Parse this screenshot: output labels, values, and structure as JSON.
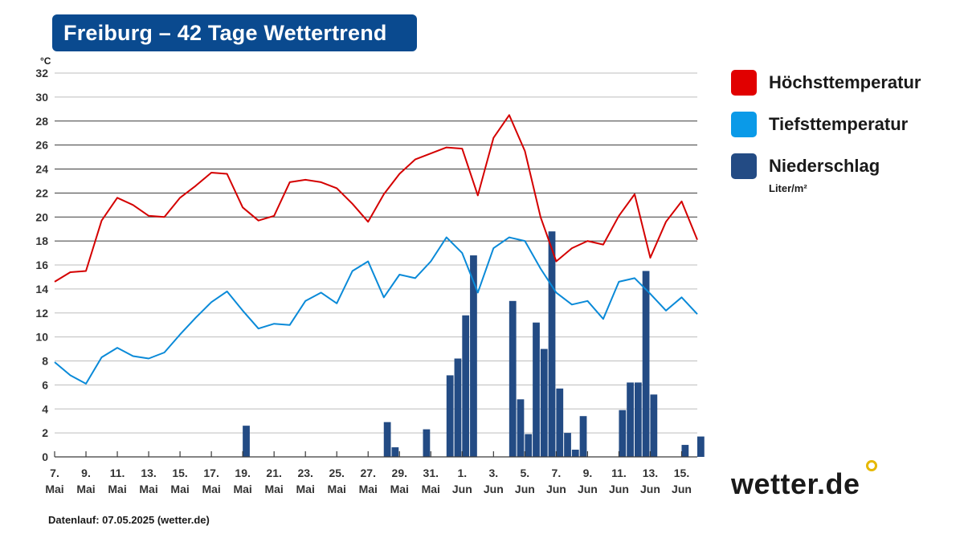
{
  "header": {
    "title": "Freiburg – 42 Tage Wettertrend"
  },
  "legend": {
    "items": [
      {
        "label": "Höchsttemperatur",
        "color": "#e10000",
        "unit": ""
      },
      {
        "label": "Tiefsttemperatur",
        "color": "#0a9ae8",
        "unit": ""
      },
      {
        "label": "Niederschlag",
        "color": "#234b84",
        "unit": "Liter/m²"
      }
    ]
  },
  "brand": {
    "name": "wetter.de"
  },
  "footer": {
    "text": "Datenlauf: 07.05.2025 (wetter.de)"
  },
  "chart_data": {
    "type": "line",
    "title": "Freiburg – 42 Tage Wettertrend",
    "ylabel": "°C",
    "ylim": [
      0,
      32
    ],
    "yticks": [
      0,
      2,
      4,
      6,
      8,
      10,
      12,
      14,
      16,
      18,
      20,
      22,
      24,
      26,
      28,
      30,
      32
    ],
    "grid": true,
    "legend_position": "right",
    "x_tick_labels": [
      [
        "7.",
        "Mai"
      ],
      [
        "9.",
        "Mai"
      ],
      [
        "11.",
        "Mai"
      ],
      [
        "13.",
        "Mai"
      ],
      [
        "15.",
        "Mai"
      ],
      [
        "17.",
        "Mai"
      ],
      [
        "19.",
        "Mai"
      ],
      [
        "21.",
        "Mai"
      ],
      [
        "23.",
        "Mai"
      ],
      [
        "25.",
        "Mai"
      ],
      [
        "27.",
        "Mai"
      ],
      [
        "29.",
        "Mai"
      ],
      [
        "31.",
        "Mai"
      ],
      [
        "1.",
        "Jun"
      ],
      [
        "3.",
        "Jun"
      ],
      [
        "5.",
        "Jun"
      ],
      [
        "7.",
        "Jun"
      ],
      [
        "9.",
        "Jun"
      ],
      [
        "11.",
        "Jun"
      ],
      [
        "13.",
        "Jun"
      ],
      [
        "15.",
        "Jun"
      ]
    ],
    "x": [
      "2025-05-07",
      "2025-05-08",
      "2025-05-09",
      "2025-05-10",
      "2025-05-11",
      "2025-05-12",
      "2025-05-13",
      "2025-05-14",
      "2025-05-15",
      "2025-05-16",
      "2025-05-17",
      "2025-05-18",
      "2025-05-19",
      "2025-05-20",
      "2025-05-21",
      "2025-05-22",
      "2025-05-23",
      "2025-05-24",
      "2025-05-25",
      "2025-05-26",
      "2025-05-27",
      "2025-05-28",
      "2025-05-29",
      "2025-05-30",
      "2025-05-31",
      "2025-06-01",
      "2025-06-02",
      "2025-06-03",
      "2025-06-04",
      "2025-06-05",
      "2025-06-06",
      "2025-06-07",
      "2025-06-08",
      "2025-06-09",
      "2025-06-10",
      "2025-06-11",
      "2025-06-12",
      "2025-06-13",
      "2025-06-14",
      "2025-06-15",
      "2025-06-16",
      "2025-06-17"
    ],
    "series": [
      {
        "name": "Höchsttemperatur",
        "type": "line",
        "color": "#d40000",
        "values": [
          14.6,
          15.4,
          15.5,
          19.7,
          21.6,
          21.0,
          20.1,
          20.0,
          21.6,
          22.6,
          23.7,
          23.6,
          20.8,
          19.7,
          20.1,
          22.9,
          23.1,
          22.9,
          22.4,
          21.1,
          19.6,
          21.9,
          23.6,
          24.8,
          25.3,
          25.8,
          25.7,
          21.8,
          26.6,
          28.5,
          25.5,
          20.0,
          16.3,
          17.4,
          18.0,
          17.7,
          20.1,
          21.9,
          16.6,
          19.6,
          21.3,
          18.1
        ]
      },
      {
        "name": "Tiefsttemperatur",
        "type": "line",
        "color": "#0a8ad8",
        "values": [
          7.9,
          6.8,
          6.1,
          8.3,
          9.1,
          8.4,
          8.2,
          8.7,
          10.2,
          11.6,
          12.9,
          13.8,
          12.2,
          10.7,
          11.1,
          11.0,
          13.0,
          13.7,
          12.8,
          15.5,
          16.3,
          13.3,
          15.2,
          14.9,
          16.3,
          18.3,
          17.0,
          13.7,
          17.4,
          18.3,
          18.0,
          15.7,
          13.7,
          12.7,
          13.0,
          11.5,
          14.6,
          14.9,
          13.6,
          12.2,
          13.3,
          11.9
        ]
      },
      {
        "name": "Niederschlag",
        "type": "bar",
        "unit": "Liter/m²",
        "color": "#234b84",
        "bars": [
          {
            "x": "2025-05-19",
            "value": 2.6
          },
          {
            "x": "2025-05-28",
            "value": 2.9
          },
          {
            "x": "2025-05-28T12",
            "value": 0.8
          },
          {
            "x": "2025-05-30T12",
            "value": 2.3
          },
          {
            "x": "2025-06-01",
            "value": 6.8
          },
          {
            "x": "2025-06-01T12",
            "value": 8.2
          },
          {
            "x": "2025-06-02",
            "value": 11.8
          },
          {
            "x": "2025-06-02T12",
            "value": 16.8
          },
          {
            "x": "2025-06-05",
            "value": 13.0
          },
          {
            "x": "2025-06-05T12",
            "value": 4.8
          },
          {
            "x": "2025-06-06",
            "value": 1.9
          },
          {
            "x": "2025-06-06T12",
            "value": 11.2
          },
          {
            "x": "2025-06-07",
            "value": 9.0
          },
          {
            "x": "2025-06-07T12",
            "value": 18.8
          },
          {
            "x": "2025-06-08",
            "value": 5.7
          },
          {
            "x": "2025-06-08T12",
            "value": 2.0
          },
          {
            "x": "2025-06-09",
            "value": 0.6
          },
          {
            "x": "2025-06-09T12",
            "value": 3.4
          },
          {
            "x": "2025-06-12",
            "value": 3.9
          },
          {
            "x": "2025-06-12T12",
            "value": 6.2
          },
          {
            "x": "2025-06-13",
            "value": 6.2
          },
          {
            "x": "2025-06-13T12",
            "value": 15.5
          },
          {
            "x": "2025-06-14",
            "value": 5.2
          },
          {
            "x": "2025-06-16",
            "value": 1.0
          },
          {
            "x": "2025-06-17",
            "value": 1.7
          }
        ]
      }
    ]
  }
}
